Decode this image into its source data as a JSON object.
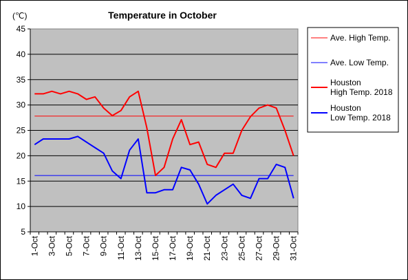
{
  "chart_data": {
    "type": "line",
    "title": "Temperature in October",
    "ylabel": "(℃)",
    "ylim": [
      5,
      45
    ],
    "yticks": [
      5,
      10,
      15,
      20,
      25,
      30,
      35,
      40,
      45
    ],
    "grid": true,
    "legend_position": "right",
    "background_color": "#c0c0c0",
    "x": [
      "1-Oct",
      "2-Oct",
      "3-Oct",
      "4-Oct",
      "5-Oct",
      "6-Oct",
      "7-Oct",
      "8-Oct",
      "9-Oct",
      "10-Oct",
      "11-Oct",
      "12-Oct",
      "13-Oct",
      "14-Oct",
      "15-Oct",
      "16-Oct",
      "17-Oct",
      "18-Oct",
      "19-Oct",
      "20-Oct",
      "21-Oct",
      "22-Oct",
      "23-Oct",
      "24-Oct",
      "25-Oct",
      "26-Oct",
      "27-Oct",
      "28-Oct",
      "29-Oct",
      "30-Oct",
      "31-Oct"
    ],
    "xticklabels": [
      "1-Oct",
      "",
      "3-Oct",
      "",
      "5-Oct",
      "",
      "7-Oct",
      "",
      "9-Oct",
      "",
      "11-Oct",
      "",
      "13-Oct",
      "",
      "15-Oct",
      "",
      "17-Oct",
      "",
      "19-Oct",
      "",
      "21-Oct",
      "",
      "23-Oct",
      "",
      "25-Oct",
      "",
      "27-Oct",
      "",
      "29-Oct",
      "",
      "31-Oct"
    ],
    "series": [
      {
        "name": "Ave. High Temp.",
        "color": "#ff0000",
        "width": 1,
        "values": [
          27.8,
          27.8,
          27.8,
          27.8,
          27.8,
          27.8,
          27.8,
          27.8,
          27.8,
          27.8,
          27.8,
          27.8,
          27.8,
          27.8,
          27.8,
          27.8,
          27.8,
          27.8,
          27.8,
          27.8,
          27.8,
          27.8,
          27.8,
          27.8,
          27.8,
          27.8,
          27.8,
          27.8,
          27.8,
          27.8,
          27.8
        ]
      },
      {
        "name": "Ave. Low Temp.",
        "color": "#0000ff",
        "width": 1,
        "values": [
          16.1,
          16.1,
          16.1,
          16.1,
          16.1,
          16.1,
          16.1,
          16.1,
          16.1,
          16.1,
          16.1,
          16.1,
          16.1,
          16.1,
          16.1,
          16.1,
          16.1,
          16.1,
          16.1,
          16.1,
          16.1,
          16.1,
          16.1,
          16.1,
          16.1,
          16.1,
          16.1,
          16.1,
          16.1,
          16.1,
          16.1
        ]
      },
      {
        "name": "Houston High Temp. 2018",
        "name_lines": [
          "Houston",
          "High Temp. 2018"
        ],
        "color": "#ff0000",
        "width": 2,
        "values": [
          32.2,
          32.2,
          32.7,
          32.2,
          32.7,
          32.2,
          31.1,
          31.6,
          29.4,
          27.9,
          28.9,
          31.6,
          32.7,
          25.5,
          16.1,
          17.7,
          23.3,
          27.1,
          22.2,
          22.7,
          18.3,
          17.7,
          20.5,
          20.5,
          25.0,
          27.7,
          29.4,
          30.0,
          29.4,
          25.0,
          20.0
        ]
      },
      {
        "name": "Houston Low Temp. 2018",
        "name_lines": [
          "Houston",
          "Low Temp. 2018"
        ],
        "color": "#0000ff",
        "width": 2,
        "values": [
          22.2,
          23.3,
          23.3,
          23.3,
          23.3,
          23.8,
          22.7,
          21.6,
          20.5,
          17.0,
          15.5,
          21.1,
          23.3,
          12.7,
          12.7,
          13.3,
          13.3,
          17.7,
          17.2,
          14.4,
          10.5,
          12.2,
          13.3,
          14.4,
          12.2,
          11.6,
          15.5,
          15.5,
          18.3,
          17.7,
          11.6
        ]
      }
    ]
  }
}
